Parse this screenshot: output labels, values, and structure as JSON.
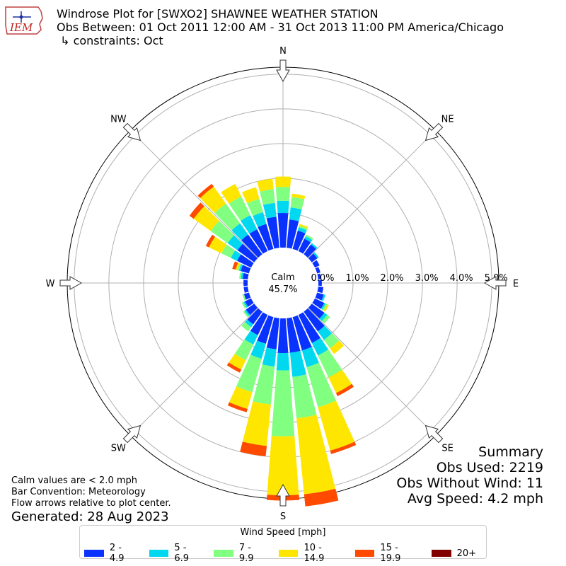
{
  "header": {
    "line1": "Windrose Plot for [SWXO2] SHAWNEE WEATHER STATION",
    "line2": "Obs Between: 01 Oct 2011 12:00 AM - 31 Oct 2013 11:00 PM America/Chicago",
    "line3": " ↳ constraints: Oct"
  },
  "logo": {
    "text": "IEM",
    "icon": "iem-iowa-logo-icon"
  },
  "notes": {
    "calm_def": "Calm values are < 2.0 mph",
    "bar_conv": "Bar Convention: Meteorology",
    "flow": "Flow arrows relative to plot center.",
    "generated": "Generated: 28 Aug 2023"
  },
  "summary": {
    "title": "Summary",
    "obs_used": "Obs Used: 2219",
    "obs_without_wind": "Obs Without Wind: 11",
    "avg_speed": "Avg Speed: 4.2 mph"
  },
  "center": {
    "label": "Calm",
    "value": "45.7%"
  },
  "legend": {
    "title": "Wind Speed [mph]",
    "items": [
      {
        "label": "2 - 4.9",
        "color": "#0a32ff"
      },
      {
        "label": "5 - 6.9",
        "color": "#00d8f0"
      },
      {
        "label": "7 - 9.9",
        "color": "#80ff80"
      },
      {
        "label": "10 - 14.9",
        "color": "#ffe600"
      },
      {
        "label": "15 - 19.9",
        "color": "#ff4a00"
      },
      {
        "label": "20+",
        "color": "#800000"
      }
    ]
  },
  "chart_data": {
    "type": "windrose",
    "radial_ticks": [
      "0.0%",
      "1.0%",
      "2.0%",
      "3.0%",
      "4.0%",
      "5.0%"
    ],
    "rmax": 5.2,
    "calm_percent": 45.7,
    "directions": [
      "N",
      "NE",
      "E",
      "SE",
      "S",
      "SW",
      "W",
      "NW"
    ],
    "bins": [
      "2 - 4.9",
      "5 - 6.9",
      "7 - 9.9",
      "10 - 14.9",
      "15 - 19.9",
      "20+"
    ],
    "sectors": [
      {
        "dir": 0,
        "values": [
          1.0,
          0.35,
          0.4,
          0.3,
          0.0,
          0.0
        ]
      },
      {
        "dir": 10,
        "values": [
          0.82,
          0.35,
          0.3,
          0.1,
          0.0,
          0.0
        ]
      },
      {
        "dir": 20,
        "values": [
          0.55,
          0.1,
          0.05,
          0.05,
          0.0,
          0.0
        ]
      },
      {
        "dir": 30,
        "values": [
          0.4,
          0.08,
          0.05,
          0.0,
          0.0,
          0.0
        ]
      },
      {
        "dir": 40,
        "values": [
          0.35,
          0.05,
          0.0,
          0.0,
          0.0,
          0.0
        ]
      },
      {
        "dir": 50,
        "values": [
          0.2,
          0.05,
          0.0,
          0.0,
          0.0,
          0.0
        ]
      },
      {
        "dir": 60,
        "values": [
          0.15,
          0.0,
          0.0,
          0.0,
          0.0,
          0.0
        ]
      },
      {
        "dir": 70,
        "values": [
          0.1,
          0.0,
          0.0,
          0.0,
          0.0,
          0.0
        ]
      },
      {
        "dir": 80,
        "values": [
          0.08,
          0.0,
          0.0,
          0.0,
          0.0,
          0.0
        ]
      },
      {
        "dir": 90,
        "values": [
          0.1,
          0.0,
          0.0,
          0.0,
          0.0,
          0.0
        ]
      },
      {
        "dir": 100,
        "values": [
          0.15,
          0.0,
          0.0,
          0.0,
          0.0,
          0.0
        ]
      },
      {
        "dir": 110,
        "values": [
          0.2,
          0.05,
          0.0,
          0.0,
          0.0,
          0.0
        ]
      },
      {
        "dir": 120,
        "values": [
          0.3,
          0.05,
          0.05,
          0.05,
          0.0,
          0.0
        ]
      },
      {
        "dir": 130,
        "values": [
          0.45,
          0.1,
          0.1,
          0.0,
          0.0,
          0.0
        ]
      },
      {
        "dir": 140,
        "values": [
          0.7,
          0.3,
          0.3,
          0.2,
          0.0,
          0.0
        ]
      },
      {
        "dir": 150,
        "values": [
          0.9,
          0.4,
          0.7,
          0.5,
          0.1,
          0.0
        ]
      },
      {
        "dir": 160,
        "values": [
          1.0,
          0.5,
          1.2,
          1.3,
          0.1,
          0.0
        ]
      },
      {
        "dir": 170,
        "values": [
          1.0,
          0.7,
          1.2,
          2.2,
          0.35,
          0.0
        ]
      },
      {
        "dir": 180,
        "values": [
          1.0,
          0.5,
          1.9,
          1.7,
          0.15,
          0.0
        ]
      },
      {
        "dir": 190,
        "values": [
          0.9,
          0.5,
          1.1,
          1.2,
          0.3,
          0.0
        ]
      },
      {
        "dir": 200,
        "values": [
          0.8,
          0.45,
          1.0,
          0.5,
          0.1,
          0.0
        ]
      },
      {
        "dir": 210,
        "values": [
          0.65,
          0.3,
          0.5,
          0.3,
          0.1,
          0.0
        ]
      },
      {
        "dir": 220,
        "values": [
          0.45,
          0.1,
          0.15,
          0.0,
          0.0,
          0.0
        ]
      },
      {
        "dir": 230,
        "values": [
          0.3,
          0.05,
          0.05,
          0.0,
          0.0,
          0.0
        ]
      },
      {
        "dir": 240,
        "values": [
          0.2,
          0.05,
          0.05,
          0.0,
          0.0,
          0.0
        ]
      },
      {
        "dir": 250,
        "values": [
          0.15,
          0.0,
          0.05,
          0.0,
          0.0,
          0.0
        ]
      },
      {
        "dir": 260,
        "values": [
          0.12,
          0.0,
          0.0,
          0.0,
          0.0,
          0.0
        ]
      },
      {
        "dir": 270,
        "values": [
          0.12,
          0.0,
          0.0,
          0.0,
          0.0,
          0.0
        ]
      },
      {
        "dir": 280,
        "values": [
          0.15,
          0.05,
          0.05,
          0.0,
          0.0,
          0.0
        ]
      },
      {
        "dir": 290,
        "values": [
          0.25,
          0.05,
          0.05,
          0.05,
          0.1,
          0.0
        ]
      },
      {
        "dir": 300,
        "values": [
          0.45,
          0.2,
          0.3,
          0.4,
          0.1,
          0.0
        ]
      },
      {
        "dir": 310,
        "values": [
          0.6,
          0.35,
          0.6,
          0.6,
          0.15,
          0.0
        ]
      },
      {
        "dir": 320,
        "values": [
          0.7,
          0.4,
          0.7,
          0.6,
          0.1,
          0.0
        ]
      },
      {
        "dir": 330,
        "values": [
          0.7,
          0.45,
          0.6,
          0.4,
          0.0,
          0.0
        ]
      },
      {
        "dir": 340,
        "values": [
          0.75,
          0.35,
          0.4,
          0.35,
          0.0,
          0.0
        ]
      },
      {
        "dir": 350,
        "values": [
          0.9,
          0.4,
          0.4,
          0.3,
          0.0,
          0.0
        ]
      }
    ]
  }
}
